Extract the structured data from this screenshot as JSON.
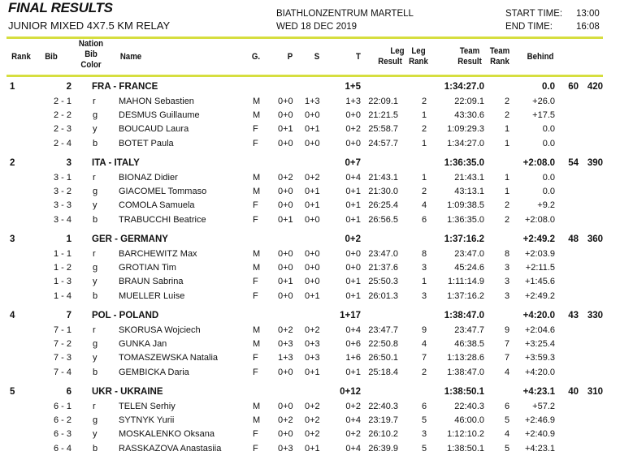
{
  "header": {
    "title": "FINAL RESULTS",
    "event": "JUNIOR MIXED 4X7.5 KM RELAY",
    "venue": "BIATHLONZENTRUM MARTELL",
    "date": "WED 18 DEC 2019",
    "start_label": "START TIME:",
    "start_time": "13:00",
    "end_label": "END TIME:",
    "end_time": "16:08"
  },
  "accent_color": "#d6de3f",
  "columns": {
    "rank": "Rank",
    "bib": "Bib",
    "color1": "Nation",
    "color2": "Bib",
    "color3": "Color",
    "name": "Name",
    "g": "G.",
    "p": "P",
    "s": "S",
    "t": "T",
    "leg1": "Leg",
    "leg2": "Result",
    "legrank1": "Leg",
    "legrank2": "Rank",
    "team1": "Team",
    "team2": "Result",
    "teamrank1": "Team",
    "teamrank2": "Rank",
    "behind": "Behind"
  },
  "teams": [
    {
      "rank": "1",
      "bib": "2",
      "nation": "FRA - FRANCE",
      "t": "1+5",
      "result": "1:34:27.0",
      "behind": "0.0",
      "pts1": "60",
      "pts2": "420",
      "members": [
        [
          "2 - 1",
          "r",
          "MAHON Sebastien",
          "M",
          "0+0",
          "1+3",
          "1+3",
          "22:09.1",
          "2",
          "22:09.1",
          "2",
          "+26.0"
        ],
        [
          "2 - 2",
          "g",
          "DESMUS Guillaume",
          "M",
          "0+0",
          "0+0",
          "0+0",
          "21:21.5",
          "1",
          "43:30.6",
          "2",
          "+17.5"
        ],
        [
          "2 - 3",
          "y",
          "BOUCAUD Laura",
          "F",
          "0+1",
          "0+1",
          "0+2",
          "25:58.7",
          "2",
          "1:09:29.3",
          "1",
          "0.0"
        ],
        [
          "2 - 4",
          "b",
          "BOTET Paula",
          "F",
          "0+0",
          "0+0",
          "0+0",
          "24:57.7",
          "1",
          "1:34:27.0",
          "1",
          "0.0"
        ]
      ]
    },
    {
      "rank": "2",
      "bib": "3",
      "nation": "ITA - ITALY",
      "t": "0+7",
      "result": "1:36:35.0",
      "behind": "+2:08.0",
      "pts1": "54",
      "pts2": "390",
      "members": [
        [
          "3 - 1",
          "r",
          "BIONAZ Didier",
          "M",
          "0+2",
          "0+2",
          "0+4",
          "21:43.1",
          "1",
          "21:43.1",
          "1",
          "0.0"
        ],
        [
          "3 - 2",
          "g",
          "GIACOMEL Tommaso",
          "M",
          "0+0",
          "0+1",
          "0+1",
          "21:30.0",
          "2",
          "43:13.1",
          "1",
          "0.0"
        ],
        [
          "3 - 3",
          "y",
          "COMOLA Samuela",
          "F",
          "0+0",
          "0+1",
          "0+1",
          "26:25.4",
          "4",
          "1:09:38.5",
          "2",
          "+9.2"
        ],
        [
          "3 - 4",
          "b",
          "TRABUCCHI Beatrice",
          "F",
          "0+1",
          "0+0",
          "0+1",
          "26:56.5",
          "6",
          "1:36:35.0",
          "2",
          "+2:08.0"
        ]
      ]
    },
    {
      "rank": "3",
      "bib": "1",
      "nation": "GER - GERMANY",
      "t": "0+2",
      "result": "1:37:16.2",
      "behind": "+2:49.2",
      "pts1": "48",
      "pts2": "360",
      "members": [
        [
          "1 - 1",
          "r",
          "BARCHEWITZ Max",
          "M",
          "0+0",
          "0+0",
          "0+0",
          "23:47.0",
          "8",
          "23:47.0",
          "8",
          "+2:03.9"
        ],
        [
          "1 - 2",
          "g",
          "GROTIAN Tim",
          "M",
          "0+0",
          "0+0",
          "0+0",
          "21:37.6",
          "3",
          "45:24.6",
          "3",
          "+2:11.5"
        ],
        [
          "1 - 3",
          "y",
          "BRAUN Sabrina",
          "F",
          "0+1",
          "0+0",
          "0+1",
          "25:50.3",
          "1",
          "1:11:14.9",
          "3",
          "+1:45.6"
        ],
        [
          "1 - 4",
          "b",
          "MUELLER Luise",
          "F",
          "0+0",
          "0+1",
          "0+1",
          "26:01.3",
          "3",
          "1:37:16.2",
          "3",
          "+2:49.2"
        ]
      ]
    },
    {
      "rank": "4",
      "bib": "7",
      "nation": "POL - POLAND",
      "t": "1+17",
      "result": "1:38:47.0",
      "behind": "+4:20.0",
      "pts1": "43",
      "pts2": "330",
      "members": [
        [
          "7 - 1",
          "r",
          "SKORUSA Wojciech",
          "M",
          "0+2",
          "0+2",
          "0+4",
          "23:47.7",
          "9",
          "23:47.7",
          "9",
          "+2:04.6"
        ],
        [
          "7 - 2",
          "g",
          "GUNKA Jan",
          "M",
          "0+3",
          "0+3",
          "0+6",
          "22:50.8",
          "4",
          "46:38.5",
          "7",
          "+3:25.4"
        ],
        [
          "7 - 3",
          "y",
          "TOMASZEWSKA Natalia",
          "F",
          "1+3",
          "0+3",
          "1+6",
          "26:50.1",
          "7",
          "1:13:28.6",
          "7",
          "+3:59.3"
        ],
        [
          "7 - 4",
          "b",
          "GEMBICKA Daria",
          "F",
          "0+0",
          "0+1",
          "0+1",
          "25:18.4",
          "2",
          "1:38:47.0",
          "4",
          "+4:20.0"
        ]
      ]
    },
    {
      "rank": "5",
      "bib": "6",
      "nation": "UKR - UKRAINE",
      "t": "0+12",
      "result": "1:38:50.1",
      "behind": "+4:23.1",
      "pts1": "40",
      "pts2": "310",
      "members": [
        [
          "6 - 1",
          "r",
          "TELEN Serhiy",
          "M",
          "0+0",
          "0+2",
          "0+2",
          "22:40.3",
          "6",
          "22:40.3",
          "6",
          "+57.2"
        ],
        [
          "6 - 2",
          "g",
          "SYTNYK Yurii",
          "M",
          "0+2",
          "0+2",
          "0+4",
          "23:19.7",
          "5",
          "46:00.0",
          "5",
          "+2:46.9"
        ],
        [
          "6 - 3",
          "y",
          "MOSKALENKO Oksana",
          "F",
          "0+0",
          "0+2",
          "0+2",
          "26:10.2",
          "3",
          "1:12:10.2",
          "4",
          "+2:40.9"
        ],
        [
          "6 - 4",
          "b",
          "RASSKAZOVA Anastasiia",
          "F",
          "0+3",
          "0+1",
          "0+4",
          "26:39.9",
          "5",
          "1:38:50.1",
          "5",
          "+4:23.1"
        ]
      ]
    }
  ]
}
